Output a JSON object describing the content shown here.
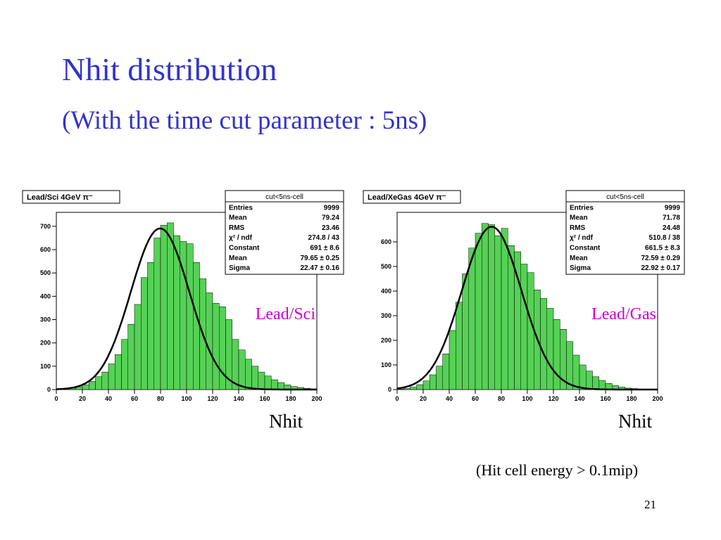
{
  "slide": {
    "title": "Nhit distribution",
    "subtitle": "(With the time cut parameter : 5ns)",
    "footnote": "(Hit cell energy > 0.1mip)",
    "page_number": "21"
  },
  "colors": {
    "title": "#3333cc",
    "fill": "#55d255",
    "label": "#cc00cc",
    "fit": "#000000"
  },
  "chart_data": [
    {
      "type": "bar",
      "histogram_title": "Lead/Sci 4GeV π⁻",
      "annotation": "Lead/Sci",
      "xlabel": "Nhit",
      "xlim": [
        0,
        200
      ],
      "ylim": [
        0,
        760
      ],
      "bin_width": 5,
      "x_ticks": [
        0,
        20,
        40,
        60,
        80,
        100,
        120,
        140,
        160,
        180,
        200
      ],
      "y_ticks": [
        0,
        100,
        200,
        300,
        400,
        500,
        600,
        700
      ],
      "bin_values": [
        1,
        3,
        6,
        12,
        20,
        35,
        55,
        75,
        110,
        150,
        215,
        280,
        365,
        480,
        545,
        650,
        705,
        715,
        660,
        635,
        625,
        545,
        475,
        415,
        370,
        355,
        300,
        215,
        170,
        130,
        100,
        75,
        58,
        42,
        30,
        20,
        13,
        9,
        5,
        3
      ],
      "fit": {
        "constant": 691,
        "mean": 79.65,
        "sigma": 22.47
      },
      "stats": {
        "title": "cut<5ns-cell",
        "rows": [
          {
            "label": "Entries",
            "value": "9999"
          },
          {
            "label": "Mean",
            "value": "79.24"
          },
          {
            "label": "RMS",
            "value": "23.46"
          },
          {
            "label": "χ² / ndf",
            "value": "274.8 / 43"
          },
          {
            "label": "Constant",
            "value": "691 ± 8.6"
          },
          {
            "label": "Mean",
            "value": "79.65 ± 0.25"
          },
          {
            "label": "Sigma",
            "value": "22.47 ± 0.16"
          }
        ]
      }
    },
    {
      "type": "bar",
      "histogram_title": "Lead/XeGas 4GeV π⁻",
      "annotation": "Lead/Gas",
      "xlabel": "Nhit",
      "xlim": [
        0,
        200
      ],
      "ylim": [
        0,
        720
      ],
      "bin_width": 5,
      "x_ticks": [
        0,
        20,
        40,
        60,
        80,
        100,
        120,
        140,
        160,
        180,
        200
      ],
      "y_ticks": [
        0,
        100,
        200,
        300,
        400,
        500,
        600
      ],
      "bin_values": [
        2,
        4,
        10,
        20,
        35,
        60,
        95,
        145,
        240,
        355,
        470,
        575,
        635,
        675,
        670,
        625,
        655,
        585,
        560,
        510,
        475,
        405,
        370,
        330,
        285,
        245,
        195,
        140,
        100,
        75,
        52,
        37,
        25,
        16,
        10,
        6,
        4,
        2,
        1,
        1
      ],
      "fit": {
        "constant": 661.5,
        "mean": 72.59,
        "sigma": 22.92
      },
      "stats": {
        "title": "cut<5ns-cell",
        "rows": [
          {
            "label": "Entries",
            "value": "9999"
          },
          {
            "label": "Mean",
            "value": "71.78"
          },
          {
            "label": "RMS",
            "value": "24.48"
          },
          {
            "label": "χ² / ndf",
            "value": "510.8 / 38"
          },
          {
            "label": "Constant",
            "value": "661.5 ± 8.3"
          },
          {
            "label": "Mean",
            "value": "72.59 ± 0.29"
          },
          {
            "label": "Sigma",
            "value": "22.92 ± 0.17"
          }
        ]
      }
    }
  ]
}
